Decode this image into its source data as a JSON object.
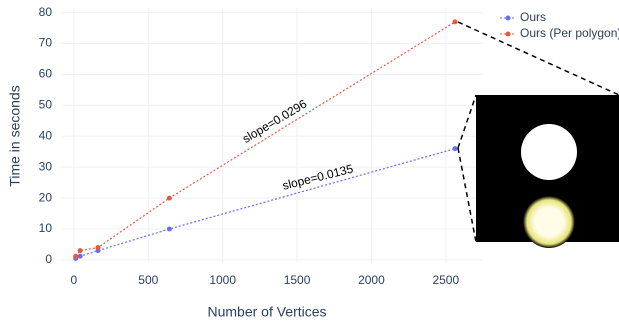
{
  "chart_data": {
    "type": "line",
    "x_label": "Number of Vertices",
    "y_label": "Time in seconds",
    "x": [
      12,
      42,
      162,
      642,
      2562
    ],
    "series": [
      {
        "name": "Ours",
        "color": "#636efa",
        "values": [
          0.5,
          1.2,
          3,
          10,
          36
        ]
      },
      {
        "name": "Ours (Per polygon)",
        "color": "#ef553b",
        "values": [
          1.2,
          3,
          4,
          20,
          77
        ]
      }
    ],
    "annotations": [
      "slope=0.0296",
      "slope=0.0135"
    ],
    "xlim": [
      -80,
      2750
    ],
    "xticks": [
      0,
      500,
      1000,
      1500,
      2000,
      2500
    ],
    "ylim": [
      -1,
      81.5
    ],
    "yticks": [
      0,
      10,
      20,
      30,
      40,
      50,
      60,
      70,
      80
    ],
    "grid": true,
    "legend": "top-right"
  }
}
